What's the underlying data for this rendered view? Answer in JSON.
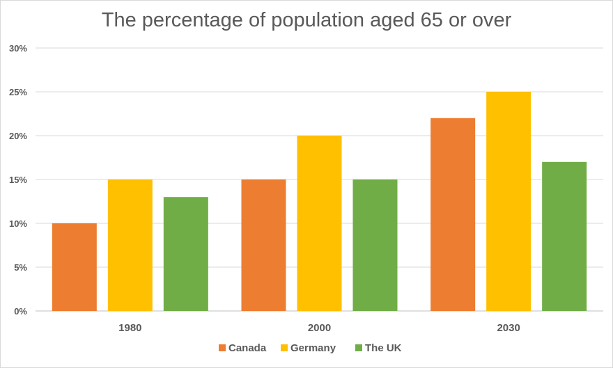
{
  "chart_data": {
    "type": "bar",
    "title": "The percentage of population aged 65 or over",
    "xlabel": "",
    "ylabel": "",
    "categories": [
      "1980",
      "2000",
      "2030"
    ],
    "series": [
      {
        "name": "Canada",
        "values": [
          10,
          15,
          22
        ],
        "color": "#ed7d31"
      },
      {
        "name": "Germany",
        "values": [
          15,
          20,
          25
        ],
        "color": "#ffc000"
      },
      {
        "name": "The UK",
        "values": [
          13,
          15,
          17
        ],
        "color": "#70ad47"
      }
    ],
    "ylim": [
      0,
      30
    ],
    "yticks": [
      0,
      5,
      10,
      15,
      20,
      25,
      30
    ],
    "ytick_labels": [
      "0%",
      "5%",
      "10%",
      "15%",
      "20%",
      "25%",
      "30%"
    ],
    "grid": true,
    "legend_position": "bottom"
  }
}
